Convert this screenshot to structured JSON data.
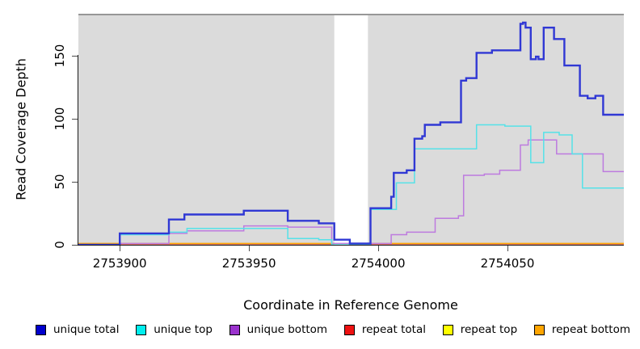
{
  "figure": {
    "title": ""
  },
  "chart_data": {
    "type": "line",
    "subtype": "step-coverage",
    "title": "",
    "xlabel": "Coordinate in Reference Genome",
    "ylabel": "Read Coverage Depth",
    "xlim": [
      2753884,
      2754095
    ],
    "ylim": [
      0,
      183
    ],
    "xticks": [
      "2753900",
      "2753950",
      "2754000",
      "2754050"
    ],
    "xtick_values": [
      2753900,
      2753950,
      2754000,
      2754050
    ],
    "yticks": [
      "0",
      "50",
      "100",
      "150"
    ],
    "ytick_values": [
      0,
      50,
      100,
      150
    ],
    "grid": false,
    "legend_position": "bottom",
    "panel_bg": "#dbdbdb",
    "panel_top_border_color": "#979797",
    "gap_band": {
      "x0": 2753983,
      "x1": 2753996,
      "color": "#ffffff"
    },
    "series": [
      {
        "name": "unique total",
        "color": "#3038d4",
        "legend_color": "#0000cd",
        "width": 2.4,
        "points": [
          [
            2753884,
            0
          ],
          [
            2753900,
            9
          ],
          [
            2753919,
            20
          ],
          [
            2753925,
            24
          ],
          [
            2753948,
            27
          ],
          [
            2753965,
            19
          ],
          [
            2753977,
            17
          ],
          [
            2753983,
            4
          ],
          [
            2753989,
            1
          ],
          [
            2753997,
            29
          ],
          [
            2754005,
            38
          ],
          [
            2754006,
            57
          ],
          [
            2754011,
            59
          ],
          [
            2754014,
            84
          ],
          [
            2754017,
            86
          ],
          [
            2754018,
            95
          ],
          [
            2754024,
            97
          ],
          [
            2754032,
            130
          ],
          [
            2754034,
            132
          ],
          [
            2754038,
            152
          ],
          [
            2754044,
            154
          ],
          [
            2754055,
            175
          ],
          [
            2754056,
            176
          ],
          [
            2754057,
            172
          ],
          [
            2754059,
            147
          ],
          [
            2754061,
            149
          ],
          [
            2754062,
            147
          ],
          [
            2754064,
            172
          ],
          [
            2754068,
            163
          ],
          [
            2754072,
            142
          ],
          [
            2754078,
            118
          ],
          [
            2754081,
            116
          ],
          [
            2754084,
            118
          ],
          [
            2754087,
            103
          ]
        ]
      },
      {
        "name": "unique top",
        "color": "#55e2e8",
        "legend_color": "#00eeee",
        "width": 1.5,
        "points": [
          [
            2753884,
            0
          ],
          [
            2753900,
            8
          ],
          [
            2753919,
            10
          ],
          [
            2753926,
            13
          ],
          [
            2753965,
            5
          ],
          [
            2753977,
            4
          ],
          [
            2753982,
            0
          ],
          [
            2753997,
            28
          ],
          [
            2754007,
            49
          ],
          [
            2754014,
            76
          ],
          [
            2754038,
            95
          ],
          [
            2754049,
            94
          ],
          [
            2754059,
            65
          ],
          [
            2754064,
            89
          ],
          [
            2754070,
            87
          ],
          [
            2754075,
            72
          ],
          [
            2754079,
            45
          ]
        ]
      },
      {
        "name": "unique bottom",
        "color": "#bd7bdf",
        "legend_color": "#9a32cd",
        "width": 1.5,
        "points": [
          [
            2753884,
            0
          ],
          [
            2753900,
            1
          ],
          [
            2753919,
            9
          ],
          [
            2753926,
            11
          ],
          [
            2753948,
            15
          ],
          [
            2753965,
            14
          ],
          [
            2753982,
            1
          ],
          [
            2754005,
            8
          ],
          [
            2754011,
            10
          ],
          [
            2754022,
            21
          ],
          [
            2754031,
            23
          ],
          [
            2754033,
            55
          ],
          [
            2754041,
            56
          ],
          [
            2754047,
            59
          ],
          [
            2754055,
            79
          ],
          [
            2754058,
            83
          ],
          [
            2754069,
            72
          ],
          [
            2754087,
            58
          ]
        ]
      },
      {
        "name": "repeat total",
        "color": "#e04358",
        "legend_color": "#ee1111",
        "width": 1.2,
        "points": [
          [
            2753884,
            0
          ]
        ]
      },
      {
        "name": "repeat top",
        "color": "#ffff00",
        "legend_color": "#ffff00",
        "width": 1.2,
        "points": [
          [
            2753884,
            0
          ]
        ]
      },
      {
        "name": "repeat bottom",
        "color": "#ffa500",
        "legend_color": "#ffa500",
        "width": 1.5,
        "points": [
          [
            2753884,
            1
          ]
        ]
      }
    ],
    "draw_layers": [
      [
        "repeat top",
        "repeat total",
        "repeat bottom"
      ],
      [
        "unique bottom",
        "unique top",
        "unique total"
      ]
    ]
  }
}
